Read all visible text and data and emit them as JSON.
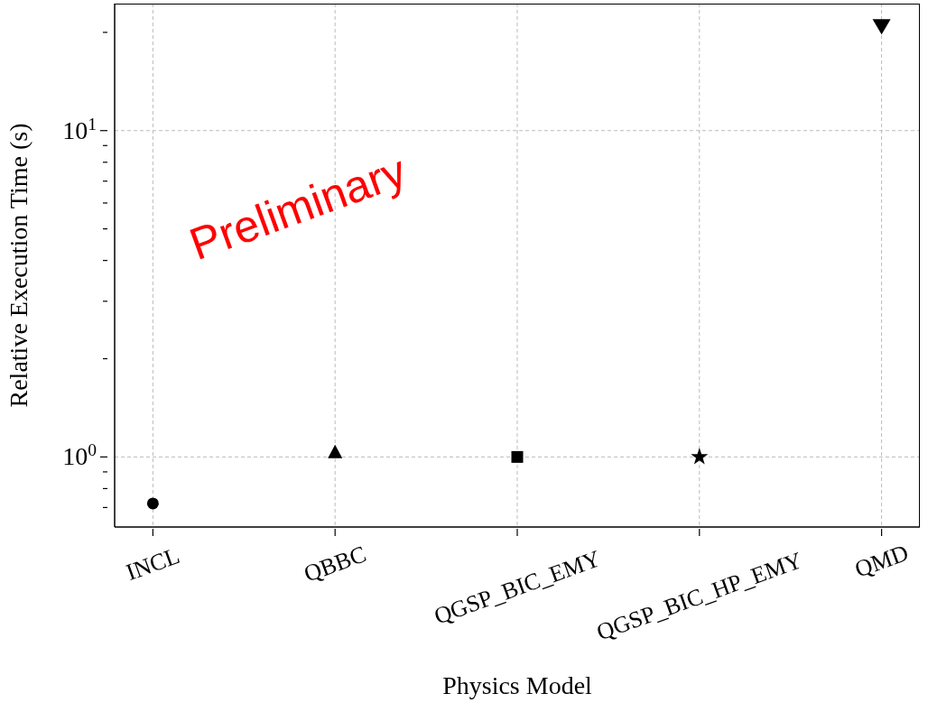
{
  "chart_data": {
    "type": "scatter",
    "xlabel": "Physics Model",
    "ylabel": "Relative Execution Time (s)",
    "categories": [
      "INCL",
      "QBBC",
      "QGSP_BIC_EMY",
      "QGSP_BIC_HP_EMY",
      "QMD"
    ],
    "series": [
      {
        "x": [
          "INCL"
        ],
        "values": [
          0.72
        ],
        "color": "#000000",
        "marker": "circle"
      },
      {
        "x": [
          "QBBC"
        ],
        "values": [
          1.03
        ],
        "color": "#000000",
        "marker": "triangle"
      },
      {
        "x": [
          "QGSP_BIC_EMY"
        ],
        "values": [
          1.0
        ],
        "color": "#000000",
        "marker": "square"
      },
      {
        "x": [
          "QGSP_BIC_HP_EMY"
        ],
        "values": [
          1.0
        ],
        "color": "#000000",
        "marker": "star"
      },
      {
        "x": [
          "QMD"
        ],
        "values": [
          21
        ],
        "color": "#000000",
        "marker": "triangle-down"
      }
    ],
    "log": "y",
    "ylim": [
      0.61,
      24.5
    ],
    "yticks": [
      {
        "value": 0.7,
        "label": null
      },
      {
        "value": 0.8,
        "label": null
      },
      {
        "value": 0.9,
        "label": null
      },
      {
        "value": 1,
        "label": "10$^{0}$"
      },
      {
        "value": 2,
        "label": null
      },
      {
        "value": 3,
        "label": null
      },
      {
        "value": 4,
        "label": null
      },
      {
        "value": 5,
        "label": null
      },
      {
        "value": 6,
        "label": null
      },
      {
        "value": 7,
        "label": null
      },
      {
        "value": 8,
        "label": null
      },
      {
        "value": 9,
        "label": null
      },
      {
        "value": 10,
        "label": "10$^{1}$"
      },
      {
        "value": 20,
        "label": null
      }
    ],
    "grid": true,
    "legend": false,
    "annotations": [
      "Preliminary"
    ]
  }
}
